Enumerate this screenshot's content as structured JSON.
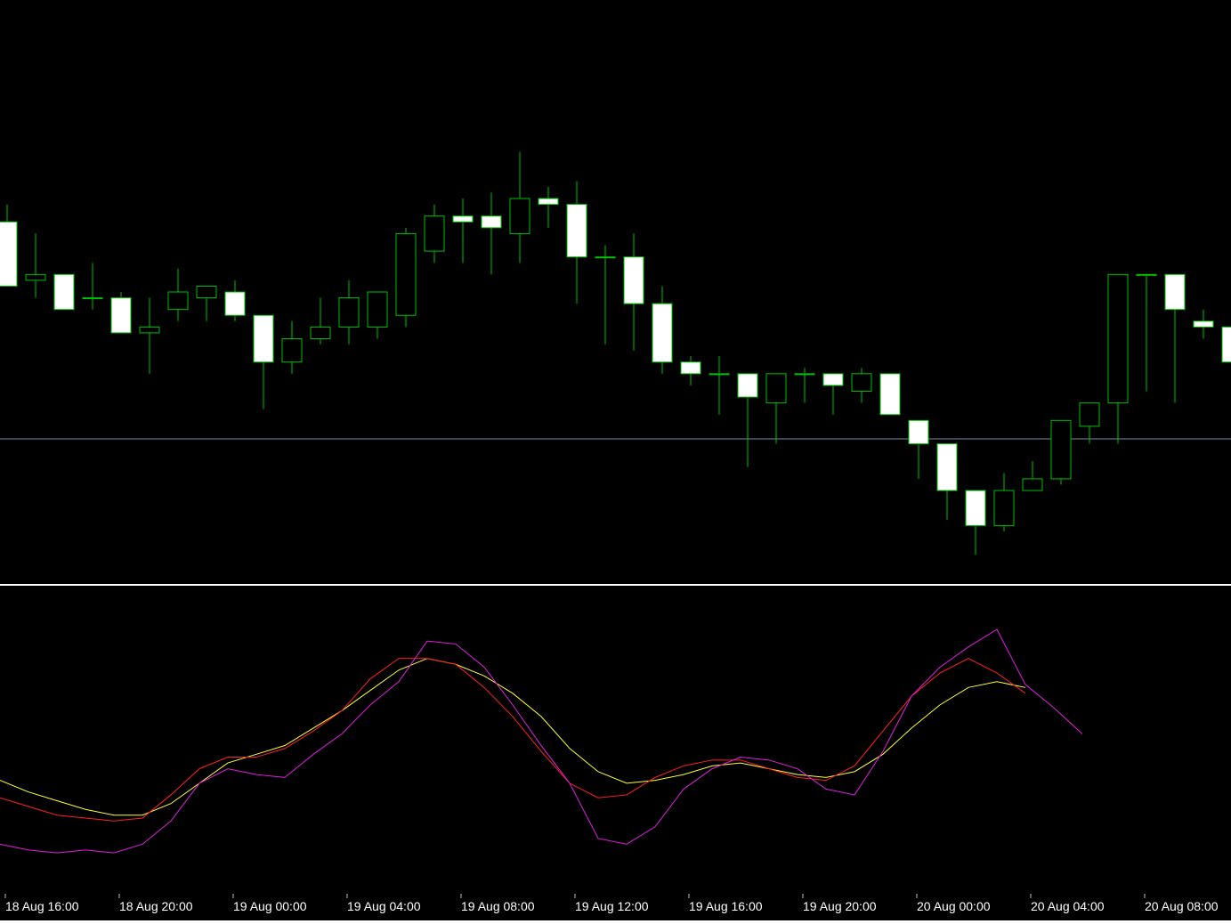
{
  "colors": {
    "background": "#000000",
    "candle_outline": "#00c000",
    "bull_fill": "#000000",
    "bear_fill": "#ffffff",
    "horizontal_line": "#6f8fa8",
    "separator": "#ffffff",
    "series_fast": "#e01ee0",
    "series_mid": "#ff2020",
    "series_slow": "#ffff30",
    "axis_text": "#ffffff",
    "axis_tick": "#c0c0c0"
  },
  "chart_data": [
    {
      "type": "candlestick",
      "horizontal_line_level": 1.0,
      "ylim": [
        0.0,
        1.0
      ],
      "candles": [
        {
          "t": 0,
          "o": 0.6,
          "h": 0.6,
          "l": 0.6,
          "c": 0.6
        }
      ]
    },
    {
      "type": "line",
      "ylim": [
        0,
        100
      ],
      "x": [],
      "series": [
        {
          "color_key": "series_fast",
          "values": []
        },
        {
          "color_key": "series_mid",
          "values": []
        },
        {
          "color_key": "series_slow",
          "values": []
        }
      ]
    }
  ],
  "x_axis": {
    "tick_labels": [
      "18 Aug 16:00",
      "18 Aug 20:00",
      "19 Aug 00:00",
      "19 Aug 04:00",
      "19 Aug 08:00",
      "19 Aug 12:00",
      "19 Aug 16:00",
      "19 Aug 20:00",
      "20 Aug 00:00",
      "20 Aug 04:00",
      "20 Aug 08:00"
    ]
  }
}
